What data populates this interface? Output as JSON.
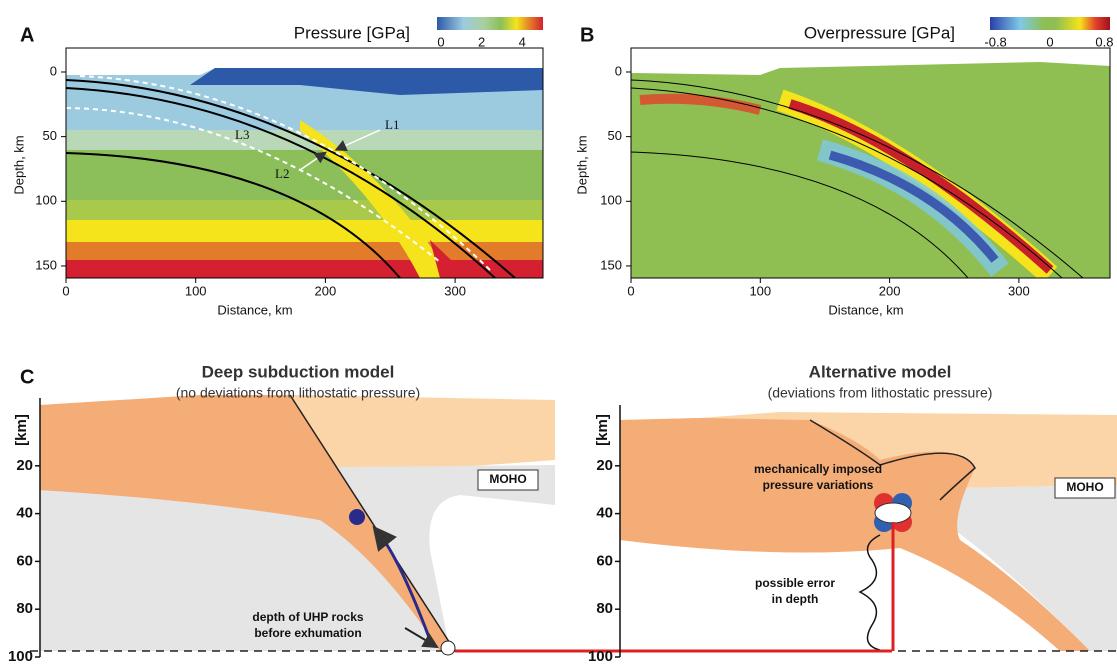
{
  "panels": [
    {
      "letter": "A",
      "title": "Pressure [GPa]",
      "colorbar_ticks": [
        0,
        2,
        4
      ],
      "xticks": [
        0,
        100,
        200,
        300
      ],
      "yticks": [
        0,
        50,
        100,
        150
      ],
      "xlabel": "Distance, km",
      "ylabel": "Depth, km",
      "labels": [
        "L1",
        "L2",
        "L3"
      ]
    },
    {
      "letter": "B",
      "title": "Overpressure [GPa]",
      "colorbar_ticks": [
        -0.8,
        0,
        0.8
      ],
      "xticks": [
        0,
        100,
        200,
        300
      ],
      "yticks": [
        0,
        50,
        100,
        150
      ],
      "xlabel": "Distance, km",
      "ylabel": "Depth, km"
    }
  ],
  "panel_c": {
    "letter": "C",
    "depth_label": "[km]",
    "depth_ticks": [
      20,
      40,
      60,
      80,
      100
    ],
    "models": [
      {
        "title": "Deep subduction model",
        "subtitle": "(no deviations from lithostatic pressure)",
        "moho": "MOHO",
        "annotation": [
          "depth of UHP rocks",
          "before exhumation"
        ]
      },
      {
        "title": "Alternative model",
        "subtitle": "(deviations from lithostatic pressure)",
        "moho": "MOHO",
        "annotation": [
          "mechanically imposed",
          "pressure variations"
        ],
        "annotation2": [
          "possible error",
          "in depth"
        ]
      }
    ]
  }
}
